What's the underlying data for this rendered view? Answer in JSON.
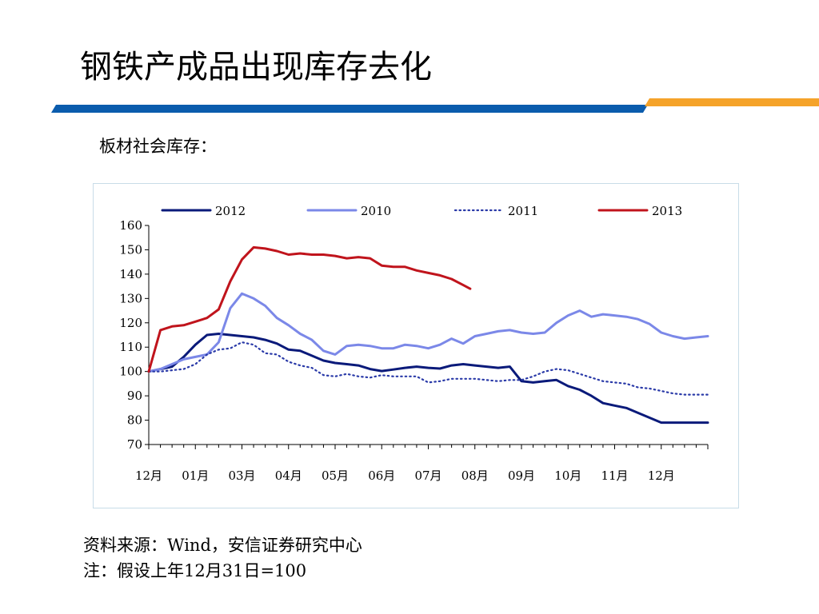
{
  "slide": {
    "title": "钢铁产成品出现库存去化",
    "subtitle": "板材社会库存：",
    "source": "资料来源：Wind，安信证券研究中心",
    "note": "注：假设上年12月31日=100",
    "colors": {
      "accent_blue": "#0b5cad",
      "accent_orange": "#f5a32a"
    }
  },
  "chart_data": {
    "type": "line",
    "title": "",
    "xlabel": "",
    "ylabel": "",
    "ylim": [
      70,
      160
    ],
    "xlim": [
      0,
      12
    ],
    "yticks": [
      70,
      80,
      90,
      100,
      110,
      120,
      130,
      140,
      150,
      160
    ],
    "x_tick_labels": [
      "12月",
      "01月",
      "03月",
      "04月",
      "05月",
      "06月",
      "07月",
      "08月",
      "09月",
      "10月",
      "11月",
      "12月"
    ],
    "legend_position": "top",
    "grid": false,
    "series": [
      {
        "name": "2012",
        "color": "#0a1a7a",
        "style": "solid",
        "x": [
          0,
          0.25,
          0.5,
          0.75,
          1,
          1.25,
          1.5,
          1.75,
          2,
          2.25,
          2.5,
          2.75,
          3,
          3.25,
          3.5,
          3.75,
          4,
          4.25,
          4.5,
          4.75,
          5,
          5.25,
          5.5,
          5.75,
          6,
          6.25,
          6.5,
          6.75,
          7,
          7.25,
          7.5,
          7.75,
          8,
          8.25,
          8.5,
          8.75,
          9,
          9.25,
          9.5,
          9.75,
          10,
          10.25,
          10.5,
          10.75,
          11,
          11.25,
          11.5,
          11.75,
          12
        ],
        "values": [
          100,
          101,
          102,
          106,
          111,
          115,
          115.5,
          115,
          114.5,
          114,
          113,
          111.5,
          109,
          108.5,
          106.5,
          104.5,
          103.5,
          103,
          102.5,
          101,
          100.2,
          100.8,
          101.5,
          102,
          101.5,
          101.2,
          102.5,
          103,
          102.5,
          102,
          101.5,
          102,
          96,
          95.5,
          96,
          96.5,
          94,
          92.5,
          90,
          87,
          86,
          85,
          83,
          81,
          79,
          79,
          79,
          79,
          79
        ]
      },
      {
        "name": "2010",
        "color": "#7b88e8",
        "style": "solid",
        "x": [
          0,
          0.25,
          0.5,
          0.75,
          1,
          1.25,
          1.5,
          1.75,
          2,
          2.25,
          2.5,
          2.75,
          3,
          3.25,
          3.5,
          3.75,
          4,
          4.25,
          4.5,
          4.75,
          5,
          5.25,
          5.5,
          5.75,
          6,
          6.25,
          6.5,
          6.75,
          7,
          7.25,
          7.5,
          7.75,
          8,
          8.25,
          8.5,
          8.75,
          9,
          9.25,
          9.5,
          9.75,
          10,
          10.25,
          10.5,
          10.75,
          11,
          11.25,
          11.5,
          11.75,
          12
        ],
        "values": [
          100,
          101,
          103,
          105,
          106,
          107,
          112,
          126,
          132,
          130,
          127,
          122,
          119,
          115.5,
          113,
          108.5,
          107,
          110.5,
          111,
          110.5,
          109.5,
          109.5,
          111,
          110.5,
          109.5,
          111,
          113.5,
          111.5,
          114.5,
          115.5,
          116.5,
          117,
          116,
          115.5,
          116,
          120,
          123,
          125,
          122.5,
          123.5,
          123,
          122.5,
          121.5,
          119.5,
          116,
          114.5,
          113.5,
          114,
          114.5
        ]
      },
      {
        "name": "2011",
        "color": "#2a3aa8",
        "style": "dotted",
        "x": [
          0,
          0.25,
          0.5,
          0.75,
          1,
          1.25,
          1.5,
          1.75,
          2,
          2.25,
          2.5,
          2.75,
          3,
          3.25,
          3.5,
          3.75,
          4,
          4.25,
          4.5,
          4.75,
          5,
          5.25,
          5.5,
          5.75,
          6,
          6.25,
          6.5,
          6.75,
          7,
          7.25,
          7.5,
          7.75,
          8,
          8.25,
          8.5,
          8.75,
          9,
          9.25,
          9.5,
          9.75,
          10,
          10.25,
          10.5,
          10.75,
          11,
          11.25,
          11.5,
          11.75,
          12
        ],
        "values": [
          100,
          100,
          100.5,
          101,
          103,
          107,
          109,
          109.5,
          112,
          111,
          107.5,
          107,
          104,
          102.5,
          101.5,
          98.5,
          98,
          99,
          98,
          97.5,
          98.5,
          98,
          98,
          98,
          95.5,
          96,
          97,
          97,
          97,
          96.5,
          96,
          96.5,
          96.5,
          98,
          100,
          101,
          100.5,
          99,
          97.5,
          96,
          95.5,
          95,
          93.5,
          93,
          92,
          91,
          90.5,
          90.5,
          90.5
        ]
      },
      {
        "name": "2013",
        "color": "#c0141c",
        "style": "solid",
        "x": [
          0,
          0.25,
          0.5,
          0.75,
          1,
          1.25,
          1.5,
          1.75,
          2,
          2.25,
          2.5,
          2.75,
          3,
          3.25,
          3.5,
          3.75,
          4,
          4.25,
          4.5,
          4.75,
          5,
          5.25,
          5.5,
          5.75,
          6,
          6.25,
          6.5,
          6.75,
          6.9
        ],
        "values": [
          100,
          117,
          118.5,
          119,
          120.5,
          122,
          125.5,
          137,
          146,
          151,
          150.5,
          149.5,
          148,
          148.5,
          148,
          148,
          147.5,
          146.5,
          147,
          146.5,
          143.5,
          143,
          143,
          141.5,
          140.5,
          139.5,
          138,
          135.5,
          134
        ]
      }
    ]
  }
}
